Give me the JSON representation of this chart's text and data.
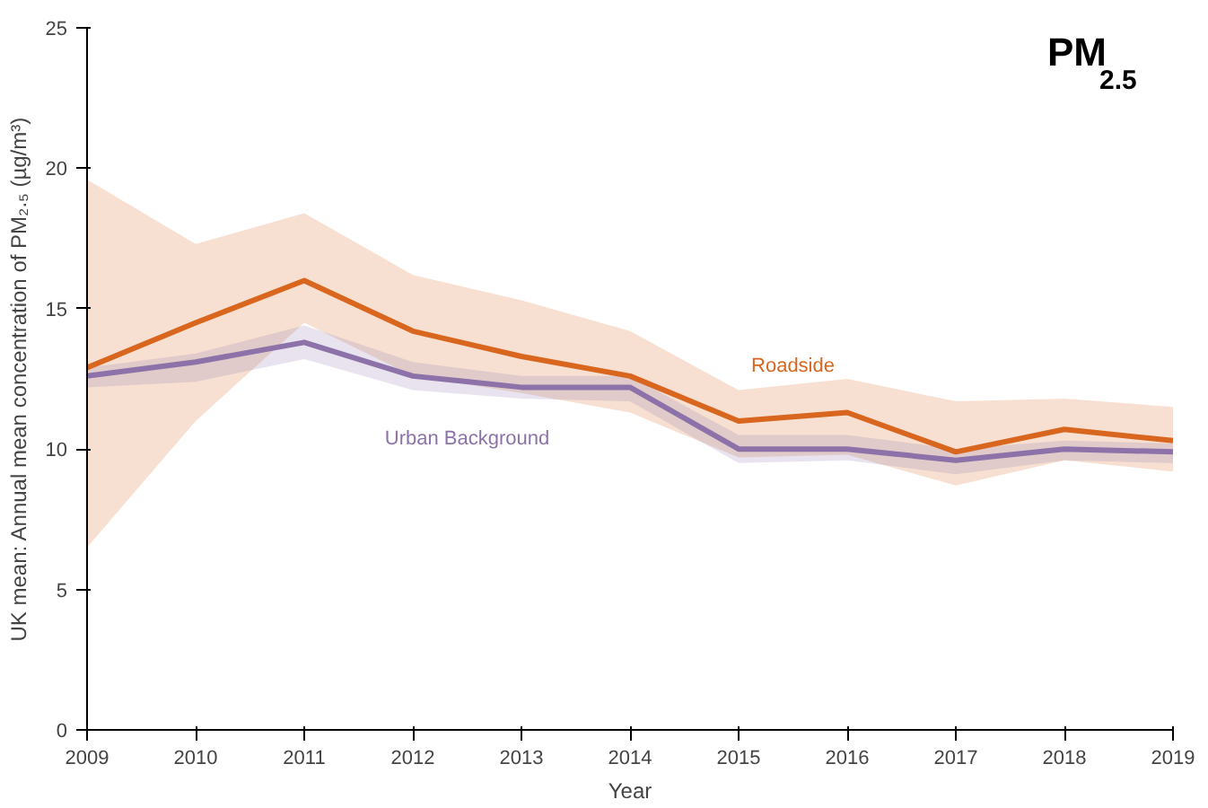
{
  "chart_data": {
    "type": "line",
    "title": "PM$_{2.5}$",
    "xlabel": "Year",
    "ylabel": "UK mean: Annual mean concentration of PM₂.₅ (µg/m³)",
    "x": [
      2009,
      2010,
      2011,
      2012,
      2013,
      2014,
      2015,
      2016,
      2017,
      2018,
      2019
    ],
    "xlim": [
      2009,
      2019
    ],
    "xticks": [
      2009,
      2010,
      2011,
      2012,
      2013,
      2014,
      2015,
      2016,
      2017,
      2018,
      2019
    ],
    "ylim": [
      0,
      25
    ],
    "yticks": [
      0,
      5,
      10,
      15,
      20,
      25
    ],
    "grid": false,
    "legend": false,
    "series": [
      {
        "name": "Roadside",
        "color": "#d9661f",
        "values": [
          12.9,
          14.5,
          16.0,
          14.2,
          13.3,
          12.6,
          11.0,
          11.3,
          9.9,
          10.7,
          10.3
        ],
        "lower": [
          6.5,
          11.0,
          14.5,
          12.6,
          12.0,
          11.3,
          9.7,
          9.8,
          8.7,
          9.6,
          9.2
        ],
        "upper": [
          19.6,
          17.3,
          18.4,
          16.2,
          15.3,
          14.2,
          12.1,
          12.5,
          11.7,
          11.8,
          11.5
        ]
      },
      {
        "name": "Urban Background",
        "color": "#8c72a8",
        "values": [
          12.6,
          13.1,
          13.8,
          12.6,
          12.2,
          12.2,
          10.0,
          10.0,
          9.6,
          10.0,
          9.9
        ],
        "lower": [
          12.2,
          12.4,
          13.2,
          12.1,
          11.8,
          11.7,
          9.5,
          9.6,
          9.1,
          9.6,
          9.5
        ],
        "upper": [
          12.9,
          13.4,
          14.4,
          13.1,
          12.6,
          12.6,
          10.5,
          10.5,
          10.0,
          10.3,
          10.2
        ]
      }
    ]
  }
}
